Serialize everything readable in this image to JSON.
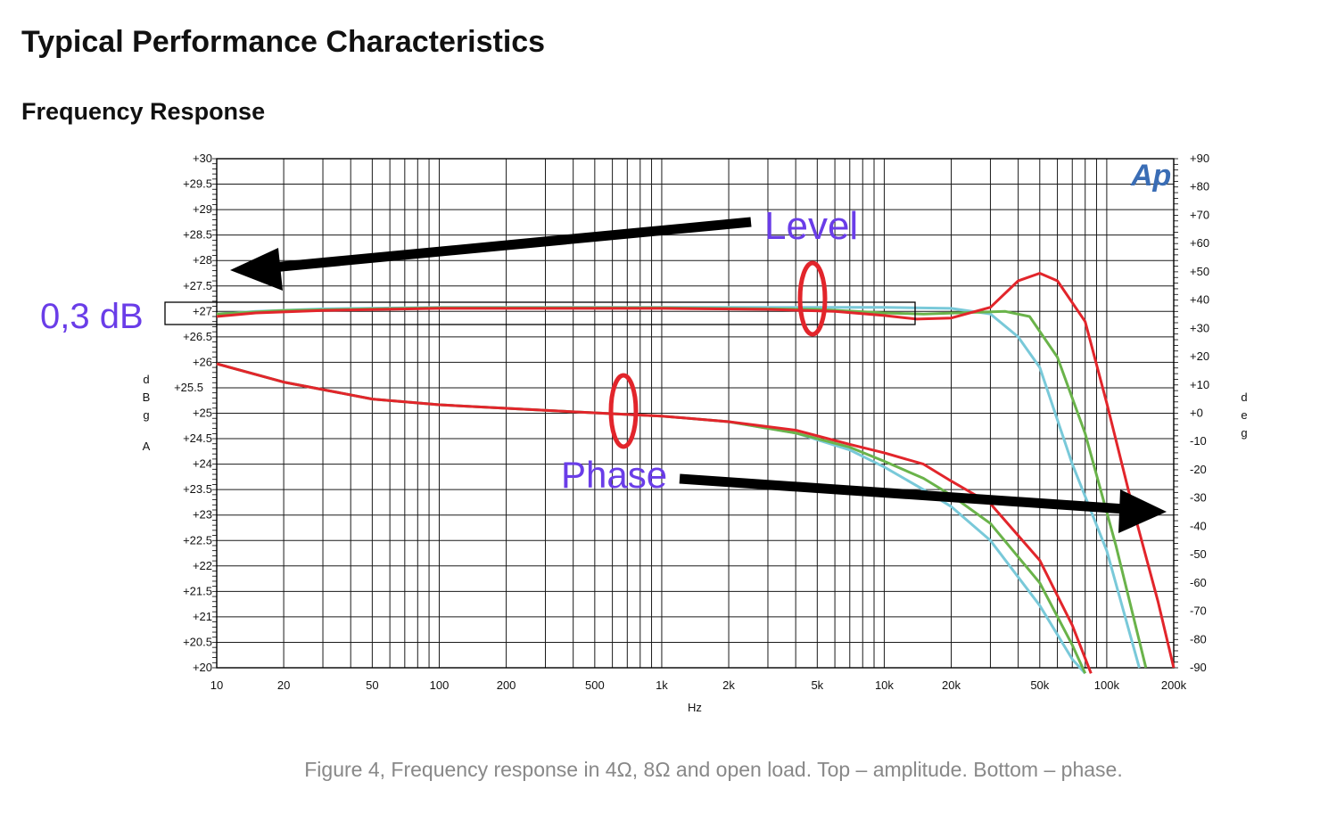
{
  "page": {
    "title": "Typical Performance Characteristics",
    "subtitle": "Frequency Response",
    "caption": "Figure 4, Frequency response in 4Ω, 8Ω and open load. Top – amplitude. Bottom – phase.",
    "logo_text": "Ap"
  },
  "annotations": {
    "level": "Level",
    "phase": "Phase",
    "band": "0,3 dB"
  },
  "colors": {
    "red": "#e2252b",
    "green": "#6ab34a",
    "cyan": "#79c9d9",
    "purple": "#6a3de8",
    "arrow": "#000000",
    "grid": "#1a1a1a"
  },
  "chart_data": {
    "type": "line",
    "title": "",
    "xlabel": "Hz",
    "ylabel_left": "d B g A",
    "ylabel_right": "d e g",
    "xscale": "log",
    "xlim": [
      10,
      200000
    ],
    "ylim_left": [
      20,
      30
    ],
    "ylim_right": [
      -90,
      90
    ],
    "grid": true,
    "x_ticks": [
      {
        "v": 10,
        "label": "10"
      },
      {
        "v": 20,
        "label": "20"
      },
      {
        "v": 50,
        "label": "50"
      },
      {
        "v": 100,
        "label": "100"
      },
      {
        "v": 200,
        "label": "200"
      },
      {
        "v": 500,
        "label": "500"
      },
      {
        "v": 1000,
        "label": "1k"
      },
      {
        "v": 2000,
        "label": "2k"
      },
      {
        "v": 5000,
        "label": "5k"
      },
      {
        "v": 10000,
        "label": "10k"
      },
      {
        "v": 20000,
        "label": "20k"
      },
      {
        "v": 50000,
        "label": "50k"
      },
      {
        "v": 100000,
        "label": "100k"
      },
      {
        "v": 200000,
        "label": "200k"
      }
    ],
    "y_left_ticks": [
      {
        "v": 30,
        "label": "+30"
      },
      {
        "v": 29.5,
        "label": "+29.5"
      },
      {
        "v": 29,
        "label": "+29"
      },
      {
        "v": 28.5,
        "label": "+28.5"
      },
      {
        "v": 28,
        "label": "+28"
      },
      {
        "v": 27.5,
        "label": "+27.5"
      },
      {
        "v": 27,
        "label": "+27"
      },
      {
        "v": 26.5,
        "label": "+26.5"
      },
      {
        "v": 26,
        "label": "+26"
      },
      {
        "v": 25.5,
        "label": "+25.5"
      },
      {
        "v": 25,
        "label": "+25"
      },
      {
        "v": 24.5,
        "label": "+24.5"
      },
      {
        "v": 24,
        "label": "+24"
      },
      {
        "v": 23.5,
        "label": "+23.5"
      },
      {
        "v": 23,
        "label": "+23"
      },
      {
        "v": 22.5,
        "label": "+22.5"
      },
      {
        "v": 22,
        "label": "+22"
      },
      {
        "v": 21.5,
        "label": "+21.5"
      },
      {
        "v": 21,
        "label": "+21"
      },
      {
        "v": 20.5,
        "label": "+20.5"
      },
      {
        "v": 20,
        "label": "+20"
      }
    ],
    "y_right_ticks": [
      {
        "v": 90,
        "label": "+90"
      },
      {
        "v": 80,
        "label": "+80"
      },
      {
        "v": 70,
        "label": "+70"
      },
      {
        "v": 60,
        "label": "+60"
      },
      {
        "v": 50,
        "label": "+50"
      },
      {
        "v": 40,
        "label": "+40"
      },
      {
        "v": 30,
        "label": "+30"
      },
      {
        "v": 20,
        "label": "+20"
      },
      {
        "v": 10,
        "label": "+10"
      },
      {
        "v": 0,
        "label": "+0"
      },
      {
        "v": -10,
        "label": "-10"
      },
      {
        "v": -20,
        "label": "-20"
      },
      {
        "v": -30,
        "label": "-30"
      },
      {
        "v": -40,
        "label": "-40"
      },
      {
        "v": -50,
        "label": "-50"
      },
      {
        "v": -60,
        "label": "-60"
      },
      {
        "v": -70,
        "label": "-70"
      },
      {
        "v": -80,
        "label": "-80"
      },
      {
        "v": -90,
        "label": "-90"
      }
    ],
    "level_series": [
      {
        "color": "cyan",
        "points": [
          [
            10,
            26.95
          ],
          [
            15,
            27.0
          ],
          [
            30,
            27.05
          ],
          [
            100,
            27.08
          ],
          [
            1000,
            27.08
          ],
          [
            10000,
            27.08
          ],
          [
            20000,
            27.06
          ],
          [
            30000,
            26.95
          ],
          [
            40000,
            26.5
          ],
          [
            50000,
            25.9
          ],
          [
            70000,
            24.0
          ],
          [
            100000,
            22.3
          ],
          [
            140000,
            20.0
          ]
        ]
      },
      {
        "color": "green",
        "points": [
          [
            10,
            26.95
          ],
          [
            20,
            27.02
          ],
          [
            100,
            27.07
          ],
          [
            1000,
            27.07
          ],
          [
            5000,
            27.04
          ],
          [
            10000,
            26.97
          ],
          [
            15000,
            26.95
          ],
          [
            25000,
            26.98
          ],
          [
            35000,
            27.0
          ],
          [
            45000,
            26.9
          ],
          [
            60000,
            26.1
          ],
          [
            80000,
            24.6
          ],
          [
            110000,
            22.4
          ],
          [
            150000,
            20.0
          ]
        ]
      },
      {
        "color": "red",
        "points": [
          [
            10,
            26.9
          ],
          [
            15,
            26.97
          ],
          [
            30,
            27.02
          ],
          [
            100,
            27.06
          ],
          [
            1000,
            27.06
          ],
          [
            3000,
            27.04
          ],
          [
            6000,
            27.0
          ],
          [
            10000,
            26.92
          ],
          [
            14000,
            26.85
          ],
          [
            20000,
            26.87
          ],
          [
            30000,
            27.08
          ],
          [
            40000,
            27.6
          ],
          [
            50000,
            27.75
          ],
          [
            60000,
            27.6
          ],
          [
            80000,
            26.8
          ],
          [
            100000,
            25.2
          ],
          [
            130000,
            23.2
          ],
          [
            170000,
            21.3
          ],
          [
            200000,
            20.0
          ]
        ]
      }
    ],
    "phase_series": [
      {
        "color": "cyan",
        "points": [
          [
            10,
            17.5
          ],
          [
            20,
            11
          ],
          [
            50,
            5
          ],
          [
            100,
            3
          ],
          [
            300,
            1
          ],
          [
            1000,
            -1
          ],
          [
            2000,
            -3
          ],
          [
            4000,
            -7
          ],
          [
            7000,
            -13
          ],
          [
            10000,
            -19
          ],
          [
            15000,
            -27
          ],
          [
            20000,
            -33
          ],
          [
            30000,
            -45
          ],
          [
            50000,
            -68
          ],
          [
            70000,
            -87
          ],
          [
            80000,
            -92
          ]
        ]
      },
      {
        "color": "green",
        "points": [
          [
            10,
            17.5
          ],
          [
            20,
            11
          ],
          [
            50,
            5
          ],
          [
            100,
            3
          ],
          [
            300,
            1
          ],
          [
            1000,
            -1
          ],
          [
            2000,
            -3
          ],
          [
            4000,
            -7
          ],
          [
            7000,
            -12
          ],
          [
            10000,
            -17
          ],
          [
            15000,
            -23
          ],
          [
            20000,
            -29
          ],
          [
            30000,
            -39
          ],
          [
            50000,
            -60
          ],
          [
            70000,
            -82
          ],
          [
            80000,
            -92
          ]
        ]
      },
      {
        "color": "red",
        "points": [
          [
            10,
            17.5
          ],
          [
            20,
            11
          ],
          [
            50,
            5
          ],
          [
            100,
            3
          ],
          [
            300,
            1
          ],
          [
            1000,
            -1
          ],
          [
            2000,
            -3
          ],
          [
            4000,
            -6
          ],
          [
            7000,
            -11
          ],
          [
            10000,
            -14
          ],
          [
            15000,
            -18
          ],
          [
            20000,
            -24
          ],
          [
            30000,
            -32
          ],
          [
            50000,
            -52
          ],
          [
            70000,
            -75
          ],
          [
            85000,
            -92
          ]
        ]
      }
    ]
  }
}
